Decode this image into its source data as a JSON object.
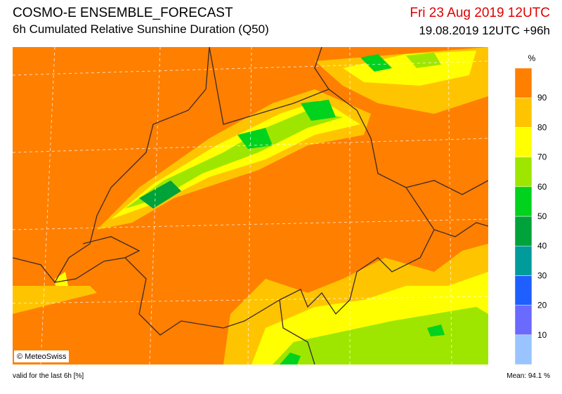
{
  "header": {
    "title": "COSMO-E ENSEMBLE_FORECAST",
    "subtitle": "6h Cumulated Relative Sunshine Duration (Q50)",
    "valid_time": "Fri 23 Aug 2019 12UTC",
    "run": "19.08.2019 12UTC +96h"
  },
  "colorbar": {
    "unit": "%",
    "ticks": [
      10,
      20,
      30,
      40,
      50,
      60,
      70,
      80,
      90
    ],
    "colors": [
      "#99c4ff",
      "#6a6aff",
      "#1f5fff",
      "#009b9b",
      "#00a23a",
      "#00d21e",
      "#9ee600",
      "#ffff00",
      "#ffc400",
      "#ff7f00"
    ]
  },
  "map": {
    "copyright": "© MeteoSwiss"
  },
  "footer": {
    "note": "valid for the last 6h [%]",
    "mean": "Mean:  94.1 %"
  }
}
